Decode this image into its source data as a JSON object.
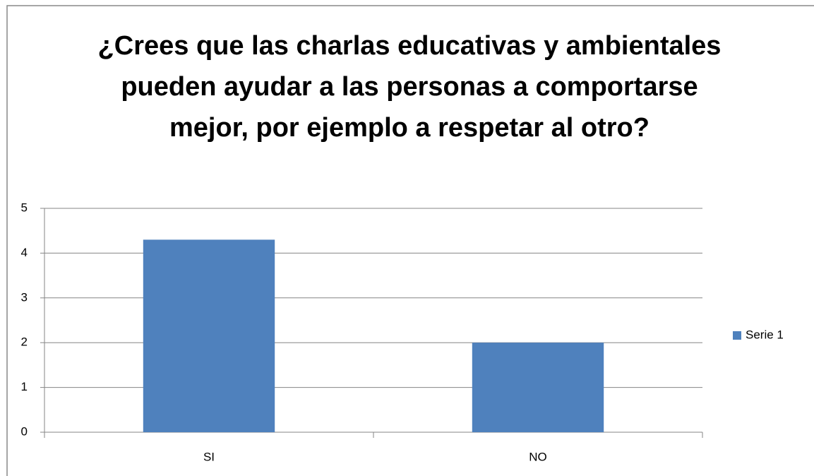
{
  "chart_data": {
    "type": "bar",
    "title": "¿Crees que las charlas educativas y ambientales pueden ayudar a las personas a comportarse mejor, por ejemplo a respetar al otro?",
    "categories": [
      "SI",
      "NO"
    ],
    "series": [
      {
        "name": "Serie 1",
        "color": "#4f81bd",
        "values": [
          4.3,
          2
        ]
      }
    ],
    "ylim": [
      0,
      5
    ],
    "yticks": [
      0,
      1,
      2,
      3,
      4,
      5
    ],
    "grid": true,
    "legend": "right"
  }
}
